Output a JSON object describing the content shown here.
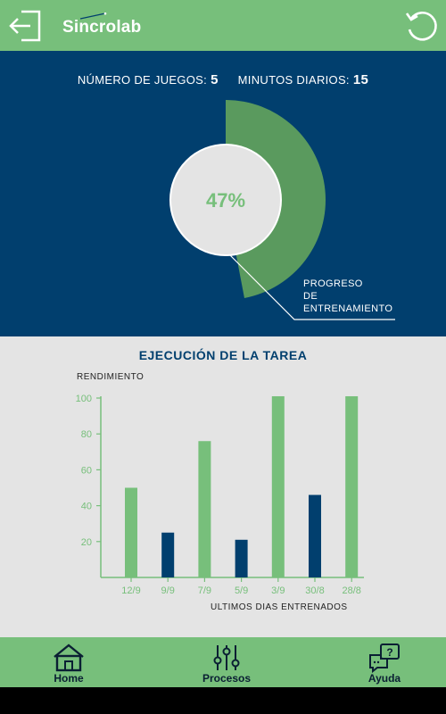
{
  "header": {
    "brand": "Sincrolab",
    "logout_icon": "logout-icon",
    "reset_icon": "reset-icon"
  },
  "stats": {
    "games_label": "NÚMERO DE JUEGOS:",
    "games_value": "5",
    "minutes_label": "MINUTOS DIARIOS:",
    "minutes_value": "15"
  },
  "progress": {
    "percent_text": "47%",
    "fraction": 0.47,
    "label_line1": "PROGRESO",
    "label_line2": "DE",
    "label_line3": "ENTRENAMIENTO"
  },
  "performance": {
    "title": "EJECUCIÓN DE LA TAREA",
    "y_label": "RENDIMIENTO",
    "x_label": "ULTIMOS DIAS ENTRENADOS"
  },
  "chart_data": {
    "type": "bar",
    "title": "EJECUCIÓN DE LA TAREA",
    "ylabel": "RENDIMIENTO",
    "xlabel": "ULTIMOS DIAS ENTRENADOS",
    "ylim": [
      0,
      100
    ],
    "yticks": [
      20,
      40,
      60,
      80,
      100
    ],
    "categories": [
      "12/9",
      "9/9",
      "7/9",
      "5/9",
      "3/9",
      "30/8",
      "28/8"
    ],
    "values": [
      50,
      25,
      76,
      21,
      101,
      46,
      101
    ],
    "colors": [
      "#77bf7b",
      "#013f6e",
      "#77bf7b",
      "#013f6e",
      "#77bf7b",
      "#013f6e",
      "#77bf7b"
    ],
    "grid": false,
    "legend": "none"
  },
  "nav": {
    "items": [
      {
        "label": "Home",
        "icon": "home-icon"
      },
      {
        "label": "Procesos",
        "icon": "sliders-icon"
      },
      {
        "label": "Ayuda",
        "icon": "help-chat-icon"
      }
    ]
  },
  "colors": {
    "green": "#77bf7b",
    "dark_green": "#5a9a5e",
    "navy": "#013f6e",
    "light_gray": "#e4e4e4"
  }
}
